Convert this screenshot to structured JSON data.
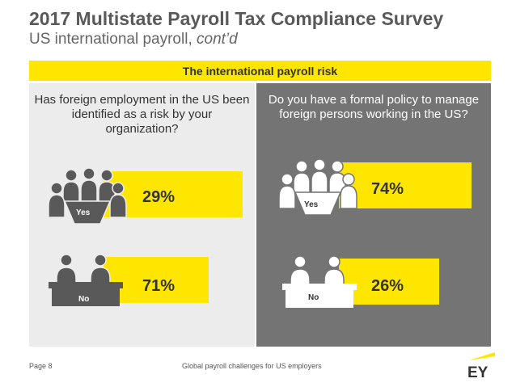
{
  "header": {
    "title": "2017 Multistate Payroll Tax Compliance Survey",
    "subtitle": "US international payroll,",
    "subtitle_italic": "cont’d"
  },
  "banner": "The international payroll risk",
  "colors": {
    "accent": "#ffe600",
    "left_panel": "#ececec",
    "right_panel": "#747474",
    "text": "#333333"
  },
  "chart_data": [
    {
      "type": "bar",
      "title": "Has foreign employment in the US been identified as a risk by your organization?",
      "categories": [
        "Yes",
        "No"
      ],
      "values": [
        29,
        71
      ],
      "labels": [
        "29%",
        "71%"
      ],
      "icons": [
        "people-around-table-icon",
        "people-at-desk-icon"
      ]
    },
    {
      "type": "bar",
      "title": "Do you have a formal policy to manage foreign persons working in the US?",
      "categories": [
        "Yes",
        "No"
      ],
      "values": [
        74,
        26
      ],
      "labels": [
        "74%",
        "26%"
      ],
      "icons": [
        "people-around-table-icon",
        "people-at-desk-icon"
      ]
    }
  ],
  "footer": {
    "page": "Page 8",
    "center": "Global payroll challenges for US employers",
    "logo": "EY"
  }
}
